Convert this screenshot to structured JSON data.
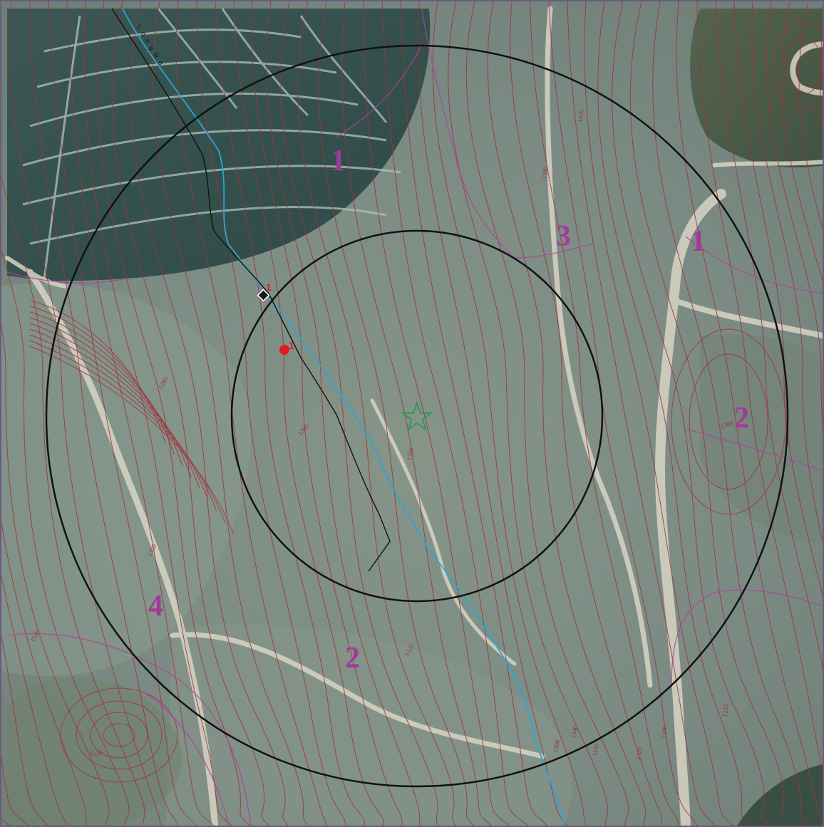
{
  "map": {
    "colors": {
      "terrain": "#7b8b84",
      "terraces": "#3f5a55",
      "contour": "#a0323a",
      "zone_boundary": "#b040a0",
      "zone_label": "#a23a9a",
      "stream": "#2aa6d6",
      "road_line": "#111111",
      "ring": "#111111",
      "center_star": "#1f9a4a",
      "marker_red": "#e01b24",
      "frame": "#6b5b7b"
    },
    "road_label": "L o n g   R d",
    "zone_labels": [
      {
        "id": "zone-1-north",
        "text": "1"
      },
      {
        "id": "zone-1-east",
        "text": "1"
      },
      {
        "id": "zone-2-east",
        "text": "2"
      },
      {
        "id": "zone-2-south",
        "text": "2"
      },
      {
        "id": "zone-3",
        "text": "3"
      },
      {
        "id": "zone-4",
        "text": "4"
      }
    ],
    "markers": {
      "black_diamond_label": "1",
      "red_dot_label": "1"
    },
    "elevation_labels": [
      {
        "id": "elev-1",
        "text": "1400"
      },
      {
        "id": "elev-2",
        "text": "1380"
      },
      {
        "id": "elev-3",
        "text": "1300"
      },
      {
        "id": "elev-4",
        "text": "1320"
      },
      {
        "id": "elev-5",
        "text": "1360"
      },
      {
        "id": "elev-6",
        "text": "1280"
      },
      {
        "id": "elev-7",
        "text": "1300"
      },
      {
        "id": "elev-8",
        "text": "1180"
      },
      {
        "id": "elev-9",
        "text": "1320"
      },
      {
        "id": "elev-10",
        "text": "1120"
      },
      {
        "id": "elev-11",
        "text": "1340"
      },
      {
        "id": "elev-12",
        "text": "1300"
      },
      {
        "id": "elev-13",
        "text": "1100"
      },
      {
        "id": "elev-14",
        "text": "1320"
      },
      {
        "id": "elev-15",
        "text": "1340"
      },
      {
        "id": "elev-16",
        "text": "1220"
      }
    ]
  }
}
